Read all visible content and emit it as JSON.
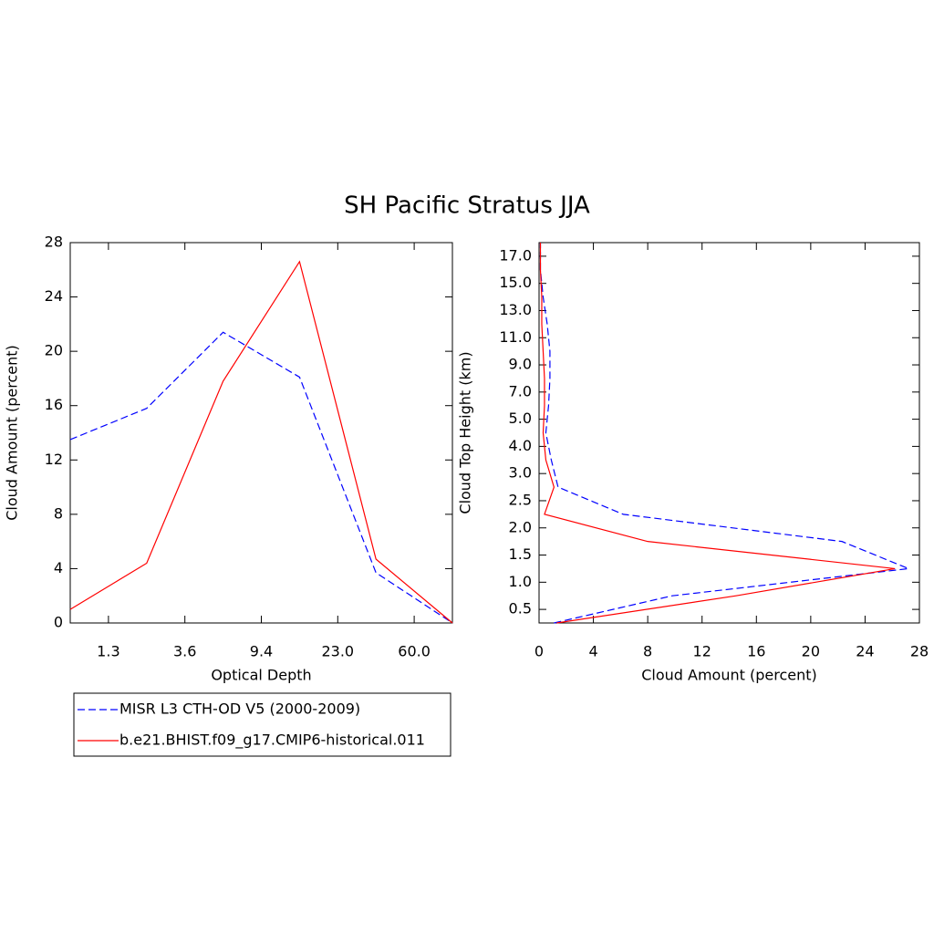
{
  "title": "SH Pacific Stratus JJA",
  "chart_data": [
    {
      "type": "line",
      "xlabel": "Optical Depth",
      "ylabel": "Cloud Amount (percent)",
      "x": [
        0,
        1,
        2,
        3,
        4,
        5
      ],
      "xlim": [
        0,
        5
      ],
      "xticks": [
        {
          "value": 0.5,
          "label": "1.3"
        },
        {
          "value": 1.5,
          "label": "3.6"
        },
        {
          "value": 2.5,
          "label": "9.4"
        },
        {
          "value": 3.5,
          "label": "23.0"
        },
        {
          "value": 4.5,
          "label": "60.0"
        }
      ],
      "ylim": [
        0,
        28
      ],
      "yticks": [
        0,
        4,
        8,
        12,
        16,
        20,
        24,
        28
      ],
      "series": [
        {
          "name": "MISR L3 CTH-OD V5 (2000-2009)",
          "color": "#0000ff",
          "dash": true,
          "values": [
            13.5,
            15.8,
            21.4,
            18.1,
            3.7,
            0
          ]
        },
        {
          "name": "b.e21.BHIST.f09_g17.CMIP6-historical.011",
          "color": "#ff0000",
          "dash": false,
          "values": [
            1.0,
            4.4,
            17.8,
            26.6,
            4.7,
            0
          ]
        }
      ]
    },
    {
      "type": "line",
      "xlabel": "Cloud Amount (percent)",
      "ylabel": "Cloud Top Height (km)",
      "y": [
        0,
        1,
        2,
        3,
        4,
        5,
        6,
        7,
        8,
        9,
        10,
        11,
        12,
        13,
        14
      ],
      "ylim": [
        0,
        14
      ],
      "yticks": [
        {
          "value": 0.5,
          "label": "0.5"
        },
        {
          "value": 1.5,
          "label": "1.0"
        },
        {
          "value": 2.5,
          "label": "1.5"
        },
        {
          "value": 3.5,
          "label": "2.0"
        },
        {
          "value": 4.5,
          "label": "2.5"
        },
        {
          "value": 5.5,
          "label": "3.0"
        },
        {
          "value": 6.5,
          "label": "4.0"
        },
        {
          "value": 7.5,
          "label": "5.0"
        },
        {
          "value": 8.5,
          "label": "7.0"
        },
        {
          "value": 9.5,
          "label": "9.0"
        },
        {
          "value": 10.5,
          "label": "11.0"
        },
        {
          "value": 11.5,
          "label": "13.0"
        },
        {
          "value": 12.5,
          "label": "15.0"
        },
        {
          "value": 13.5,
          "label": "17.0"
        }
      ],
      "xlim": [
        0,
        28
      ],
      "xticks": [
        0,
        4,
        8,
        12,
        16,
        20,
        24,
        28
      ],
      "series": [
        {
          "name": "MISR L3 CTH-OD V5 (2000-2009)",
          "color": "#0000ff",
          "dash": true,
          "values": [
            1.1,
            9.8,
            27.2,
            22.3,
            6.2,
            1.4,
            0.9,
            0.5,
            0.7,
            0.8,
            0.8,
            0.6,
            0.3,
            0.1,
            0.1
          ]
        },
        {
          "name": "b.e21.BHIST.f09_g17.CMIP6-historical.011",
          "color": "#ff0000",
          "dash": false,
          "values": [
            1.3,
            14.5,
            26.2,
            8.0,
            0.4,
            1.1,
            0.5,
            0.3,
            0.4,
            0.4,
            0.3,
            0.2,
            0.2,
            0.1,
            0.1
          ]
        }
      ]
    }
  ]
}
